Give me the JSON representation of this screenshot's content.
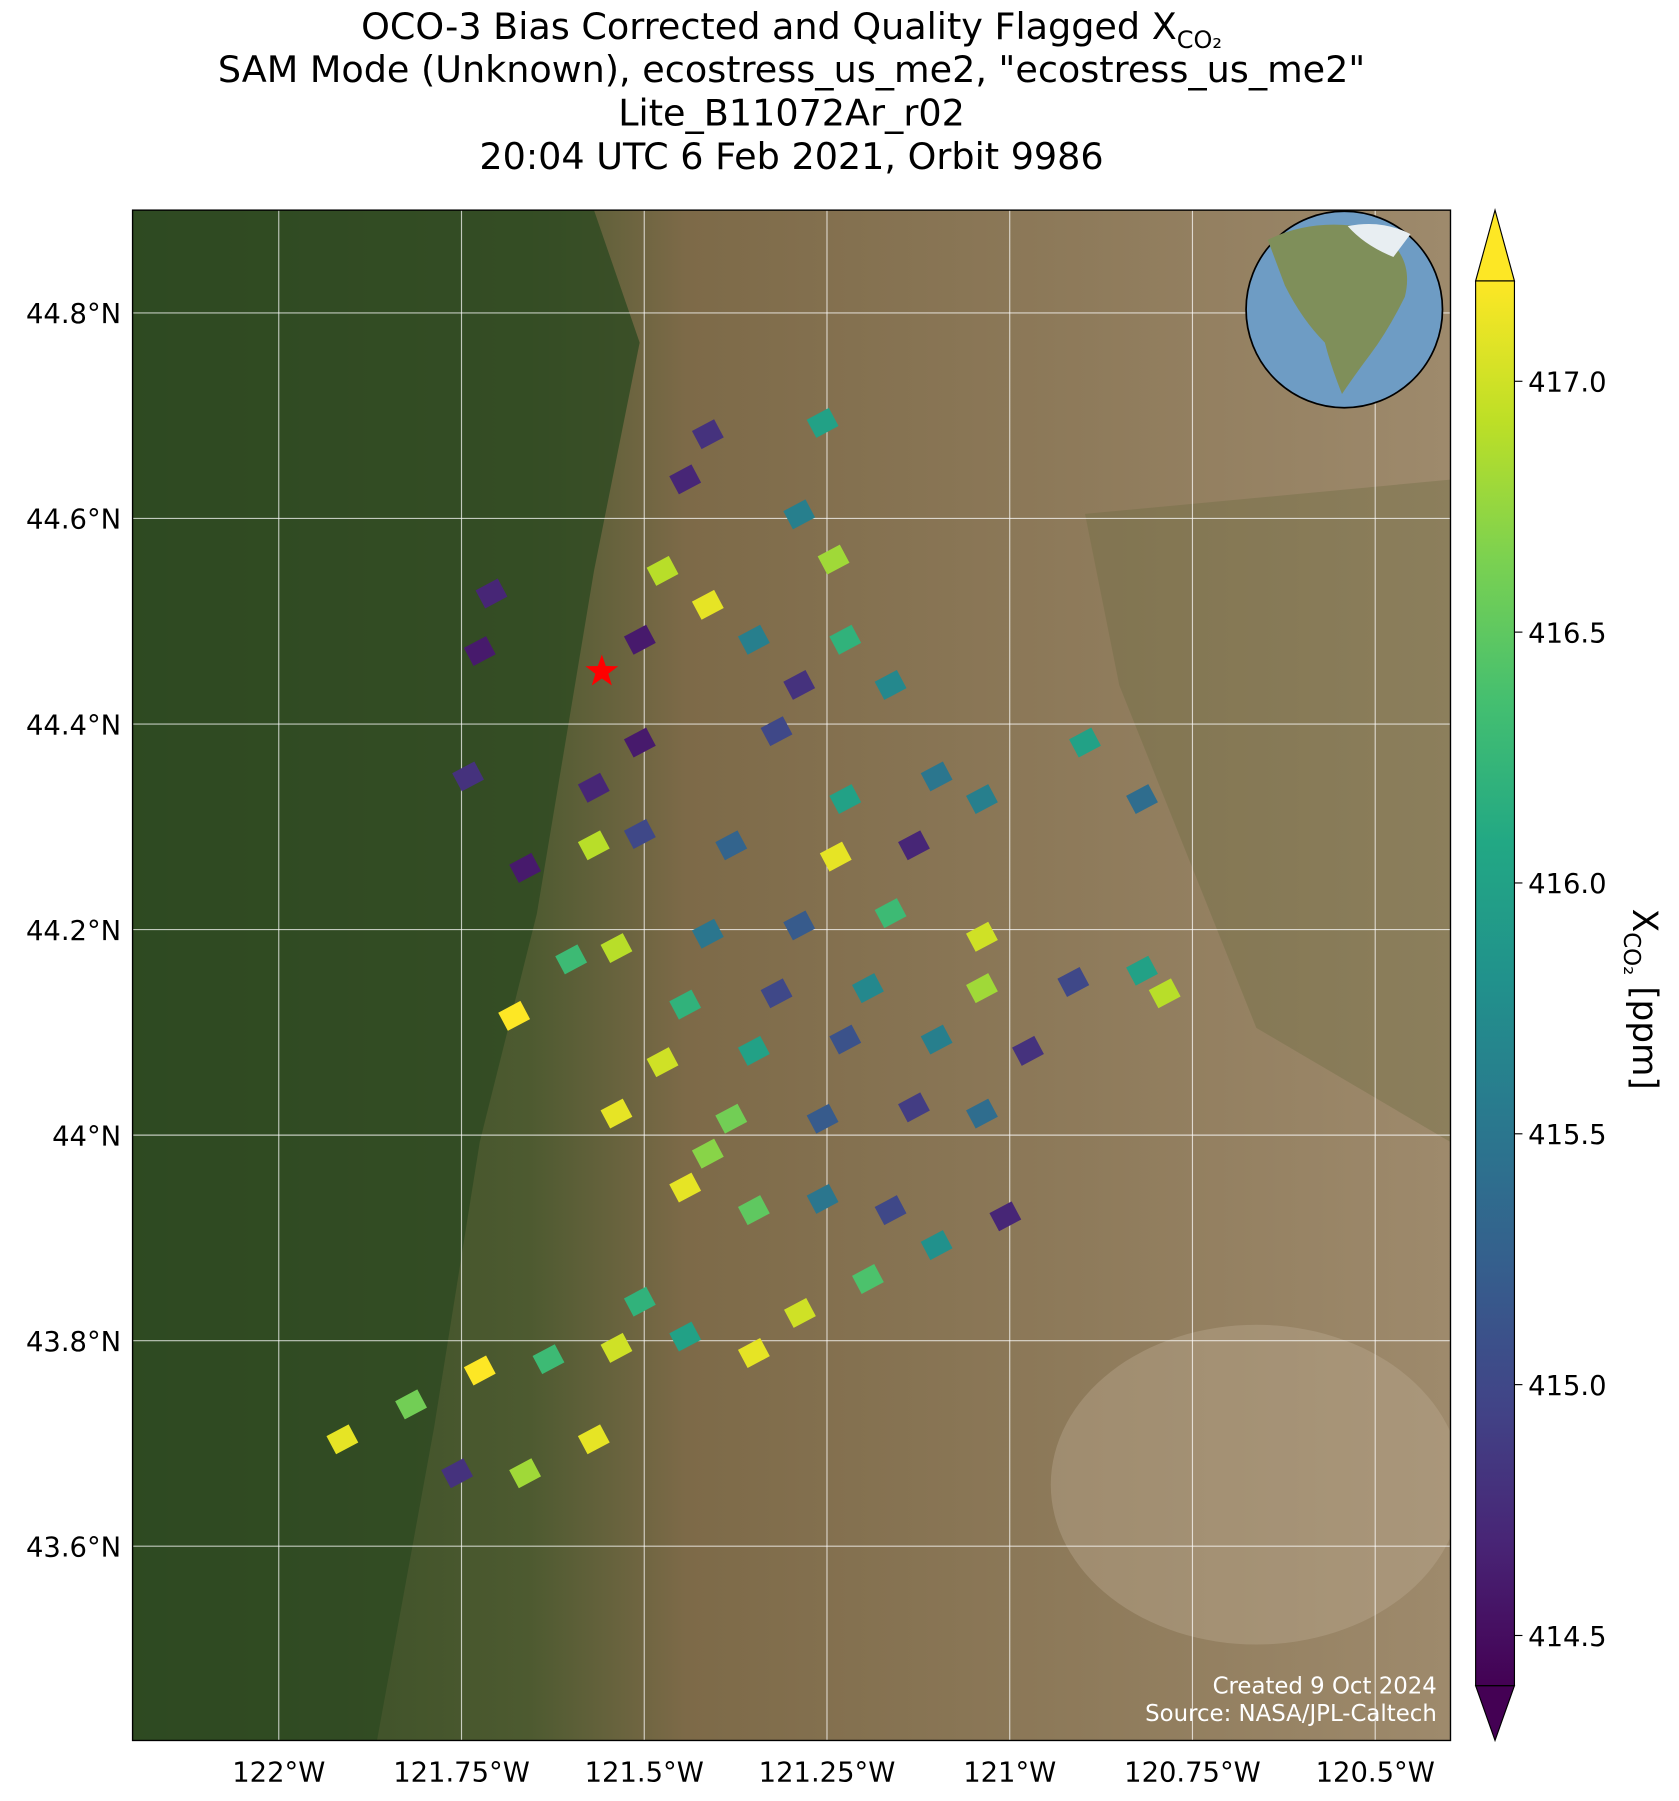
{
  "chart_data": {
    "type": "map",
    "title_lines": [
      "OCO-3 Bias Corrected and Quality Flagged X",
      "SAM Mode (Unknown), ecostress_us_me2, \"ecostress_us_me2\"",
      "Lite_B11072Ar_r02",
      "20:04 UTC 6 Feb 2021, Orbit 9986"
    ],
    "title_sub": "CO₂",
    "colorbar_label": "X",
    "colorbar_label_sub": "CO₂",
    "colorbar_unit": " [ppm]",
    "credits": [
      "Created 9 Oct 2024",
      "Source: NASA/JPL-Caltech"
    ],
    "xlim": [
      -122.2,
      -120.397
    ],
    "ylim": [
      43.411,
      44.9
    ],
    "xticks": [
      {
        "value": -122,
        "label": "122°W"
      },
      {
        "value": -121.75,
        "label": "121.75°W"
      },
      {
        "value": -121.5,
        "label": "121.5°W"
      },
      {
        "value": -121.25,
        "label": "121.25°W"
      },
      {
        "value": -121,
        "label": "121°W"
      },
      {
        "value": -120.75,
        "label": "120.75°W"
      },
      {
        "value": -120.5,
        "label": "120.5°W"
      }
    ],
    "yticks": [
      {
        "value": 43.6,
        "label": "43.6°N"
      },
      {
        "value": 43.8,
        "label": "43.8°N"
      },
      {
        "value": 44,
        "label": "44°N"
      },
      {
        "value": 44.2,
        "label": "44.2°N"
      },
      {
        "value": 44.4,
        "label": "44.4°N"
      },
      {
        "value": 44.6,
        "label": "44.6°N"
      },
      {
        "value": 44.8,
        "label": "44.8°N"
      }
    ],
    "clim": [
      414.4,
      417.2
    ],
    "cticks": [
      414.5,
      {
        "value": 415,
        "label": "415.0"
      },
      415.5,
      {
        "value": 416,
        "label": "416.0"
      },
      416.5,
      {
        "value": 417,
        "label": "417.0"
      }
    ],
    "colormap": "viridis",
    "grid": true,
    "target": {
      "lon": -121.558,
      "lat": 44.451
    },
    "soundings": {
      "lon": [
        -121.913,
        -121.819,
        -121.725,
        -121.631,
        -121.538,
        -121.444,
        -121.35,
        -121.663,
        -121.569,
        -121.756,
        -121.506,
        -121.287,
        -121.194,
        -121.1,
        -121.006,
        -121.444,
        -121.35,
        -121.256,
        -121.163,
        -121.413,
        -121.538,
        -121.381,
        -121.256,
        -121.131,
        -121.038,
        -121.475,
        -121.35,
        -121.225,
        -121.1,
        -120.975,
        -121.444,
        -121.319,
        -121.194,
        -121.038,
        -120.913,
        -120.819,
        -120.788,
        -121.538,
        -121.413,
        -121.288,
        -121.163,
        -121.6,
        -121.678,
        -121.663,
        -121.569,
        -121.506,
        -121.381,
        -121.238,
        -121.131,
        -121.225,
        -121.1,
        -121.038,
        -120.897,
        -120.819,
        -121.569,
        -121.506,
        -121.725,
        -121.709,
        -121.741,
        -121.506,
        -121.475,
        -121.413,
        -121.35,
        -121.288,
        -121.225,
        -121.163,
        -121.319,
        -121.444,
        -121.288,
        -121.241,
        -121.256,
        -121.413,
        -121.038
      ],
      "lat": [
        43.704,
        43.738,
        43.771,
        43.782,
        43.793,
        43.804,
        43.788,
        43.671,
        43.704,
        43.671,
        43.838,
        43.827,
        43.86,
        43.893,
        43.921,
        43.949,
        43.927,
        43.938,
        43.927,
        43.982,
        44.021,
        44.016,
        44.016,
        44.027,
        44.021,
        44.071,
        44.082,
        44.093,
        44.093,
        44.082,
        44.127,
        44.138,
        44.143,
        44.143,
        44.149,
        44.16,
        44.138,
        44.182,
        44.196,
        44.204,
        44.216,
        44.171,
        44.116,
        44.26,
        44.282,
        44.293,
        44.282,
        44.271,
        44.282,
        44.327,
        44.349,
        44.327,
        44.382,
        44.327,
        44.338,
        44.382,
        44.471,
        44.527,
        44.349,
        44.482,
        44.549,
        44.516,
        44.482,
        44.438,
        44.482,
        44.438,
        44.393,
        44.638,
        44.604,
        44.56,
        44.693,
        44.682,
        44.193
      ],
      "xco2": [
        417.1,
        416.6,
        417.2,
        416.3,
        417.0,
        416.0,
        417.1,
        416.8,
        417.1,
        414.8,
        416.2,
        417.0,
        416.4,
        415.8,
        414.7,
        417.1,
        416.5,
        415.5,
        415.0,
        416.7,
        417.1,
        416.6,
        415.2,
        414.9,
        415.4,
        417.0,
        416.0,
        415.1,
        415.6,
        414.8,
        416.2,
        415.0,
        415.7,
        416.8,
        415.0,
        416.0,
        416.9,
        416.9,
        415.5,
        415.2,
        416.3,
        416.3,
        417.2,
        414.6,
        416.9,
        415.0,
        415.3,
        417.1,
        414.7,
        416.0,
        415.5,
        415.6,
        416.0,
        415.4,
        414.7,
        414.6,
        414.6,
        414.7,
        414.8,
        414.6,
        416.9,
        417.1,
        415.6,
        414.8,
        416.2,
        415.7,
        415.0,
        414.7,
        415.6,
        416.8,
        416.0,
        414.8,
        417.0
      ]
    }
  }
}
